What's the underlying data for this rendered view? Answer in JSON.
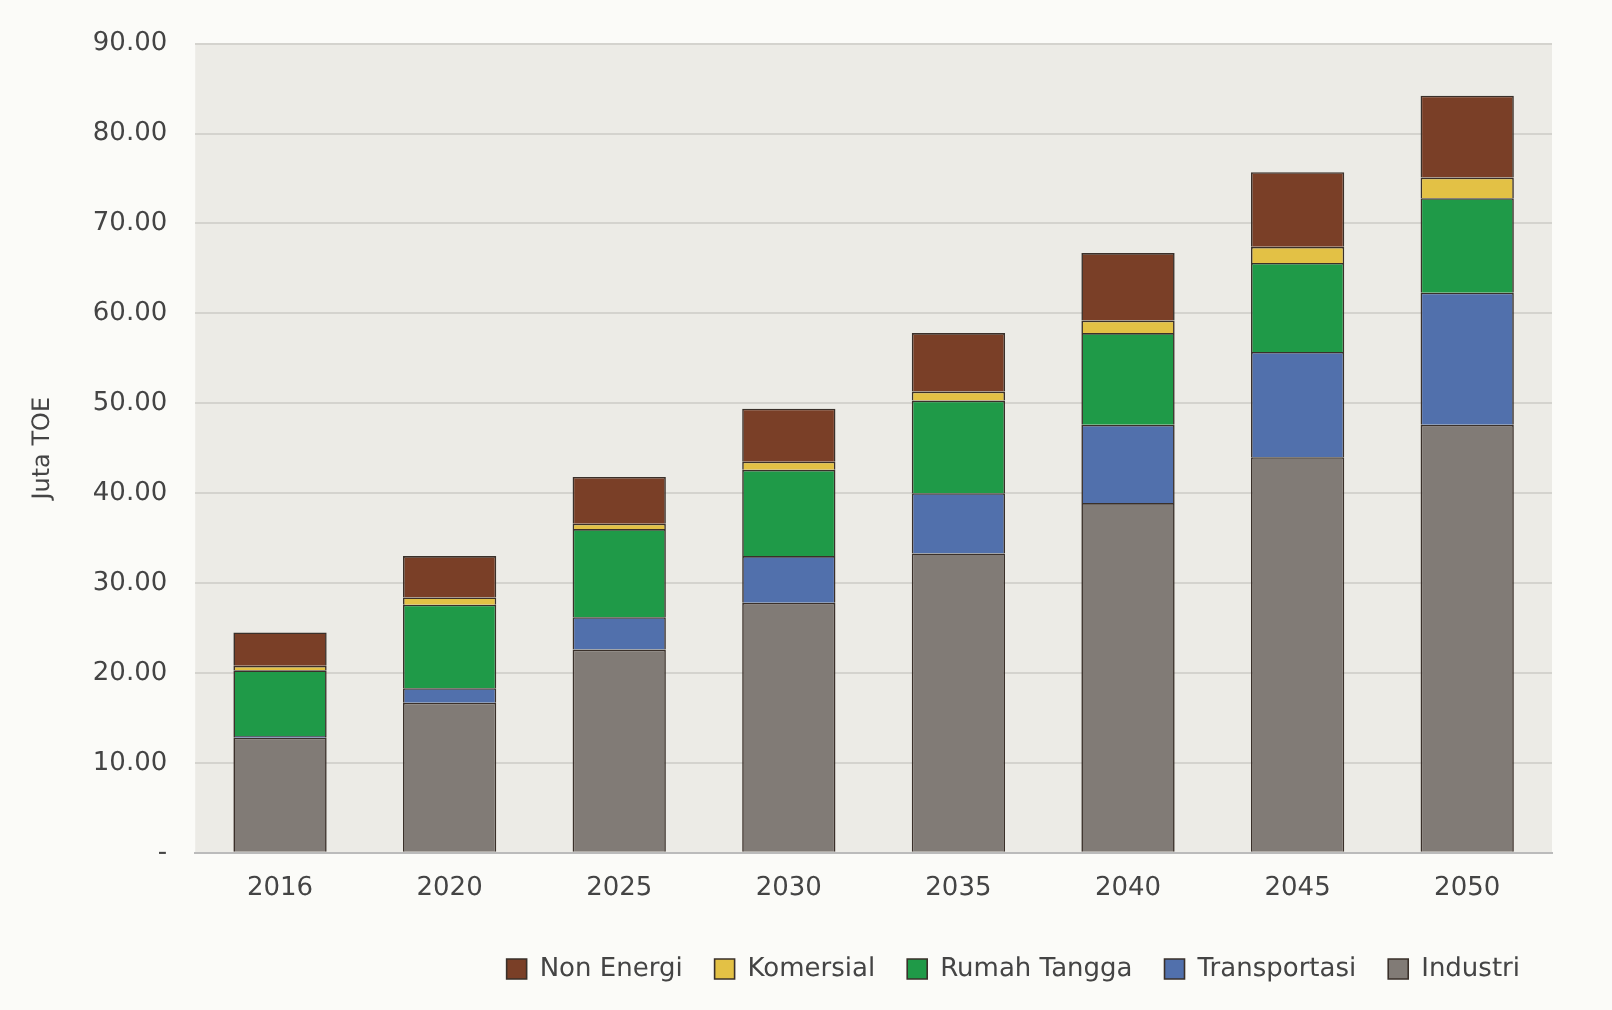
{
  "chart_data": {
    "type": "bar",
    "stacked": true,
    "ylabel": "Juta TOE",
    "categories": [
      "2016",
      "2020",
      "2025",
      "2030",
      "2035",
      "2040",
      "2045",
      "2050"
    ],
    "series": [
      {
        "name": "Industri",
        "color": "#817b76",
        "values": [
          12.8,
          16.7,
          22.6,
          27.8,
          33.3,
          38.9,
          44.0,
          47.6
        ]
      },
      {
        "name": "Transportasi",
        "color": "#5170ac",
        "values": [
          0.2,
          1.6,
          3.6,
          5.2,
          6.7,
          8.7,
          11.7,
          14.7
        ]
      },
      {
        "name": "Rumah Tangga",
        "color": "#1f9a48",
        "values": [
          7.3,
          9.3,
          9.8,
          9.6,
          10.3,
          10.2,
          9.9,
          10.5
        ]
      },
      {
        "name": "Komersial",
        "color": "#e3c145",
        "values": [
          0.5,
          0.8,
          0.6,
          0.9,
          1.0,
          1.4,
          1.8,
          2.3
        ]
      },
      {
        "name": "Non Energi",
        "color": "#7a3f27",
        "values": [
          3.7,
          4.6,
          5.2,
          5.9,
          6.5,
          7.5,
          8.3,
          9.1
        ]
      }
    ],
    "ylim": [
      0,
      90
    ],
    "yticks": [
      {
        "value": 0,
        "label": "-"
      },
      {
        "value": 10,
        "label": "10.00"
      },
      {
        "value": 20,
        "label": "20.00"
      },
      {
        "value": 30,
        "label": "30.00"
      },
      {
        "value": 40,
        "label": "40.00"
      },
      {
        "value": 50,
        "label": "50.00"
      },
      {
        "value": 60,
        "label": "60.00"
      },
      {
        "value": 70,
        "label": "70.00"
      },
      {
        "value": 80,
        "label": "80.00"
      },
      {
        "value": 90,
        "label": "90.00"
      }
    ],
    "grid": "y",
    "legend": "bottom"
  }
}
